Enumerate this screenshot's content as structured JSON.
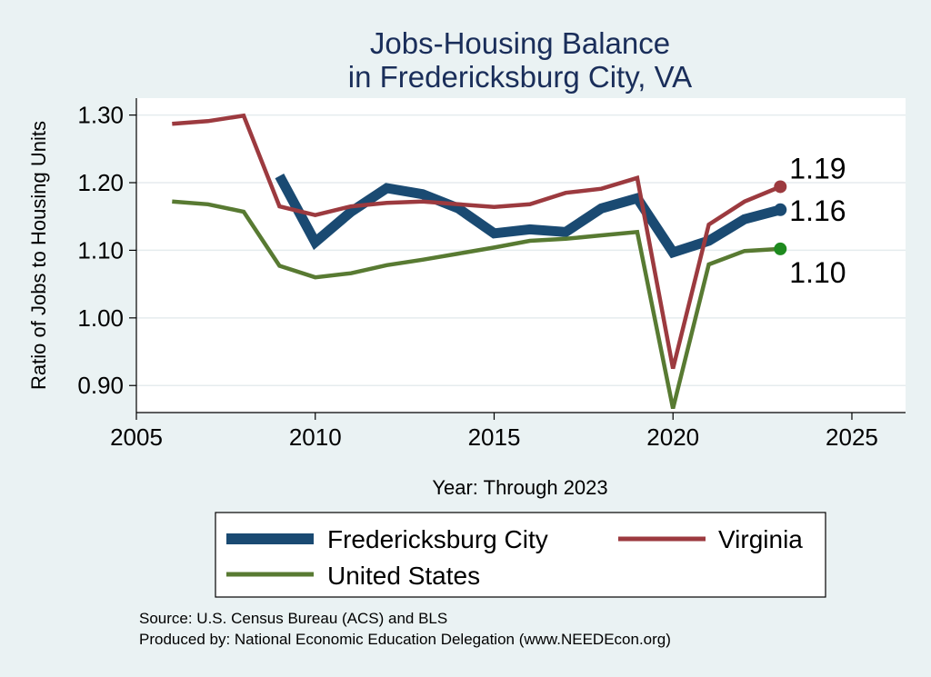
{
  "chart_data": {
    "type": "line",
    "title": [
      "Jobs-Housing Balance",
      "in Fredericksburg City, VA"
    ],
    "xlabel": "Year: Through 2023",
    "ylabel": "Ratio of Jobs to Housing Units",
    "xlim": [
      2005,
      2026.5
    ],
    "ylim": [
      0.86,
      1.325
    ],
    "xticks": [
      2005,
      2010,
      2015,
      2020,
      2025
    ],
    "yticks": [
      0.9,
      1.0,
      1.1,
      1.2,
      1.3
    ],
    "ytick_labels": [
      "0.90",
      "1.00",
      "1.10",
      "1.20",
      "1.30"
    ],
    "grid": true,
    "legend_position": "bottom",
    "series": [
      {
        "name": "Fredericksburg City",
        "color": "#1a4a72",
        "x": [
          2009,
          2010,
          2011,
          2012,
          2013,
          2014,
          2015,
          2016,
          2017,
          2018,
          2019,
          2020,
          2021,
          2022,
          2023
        ],
        "values": [
          1.21,
          1.112,
          1.157,
          1.192,
          1.183,
          1.162,
          1.125,
          1.131,
          1.127,
          1.162,
          1.177,
          1.097,
          1.114,
          1.146,
          1.16
        ],
        "end_label": "1.16"
      },
      {
        "name": "Virginia",
        "color": "#9c3a3f",
        "x": [
          2006,
          2007,
          2008,
          2009,
          2010,
          2011,
          2012,
          2013,
          2014,
          2015,
          2016,
          2017,
          2018,
          2019,
          2020,
          2021,
          2022,
          2023
        ],
        "values": [
          1.287,
          1.291,
          1.299,
          1.165,
          1.152,
          1.165,
          1.17,
          1.172,
          1.168,
          1.164,
          1.168,
          1.185,
          1.191,
          1.207,
          0.925,
          1.138,
          1.172,
          1.194
        ],
        "end_label": "1.19"
      },
      {
        "name": "United States",
        "color": "#587a32",
        "marker_color": "#1e8a1e",
        "x": [
          2006,
          2007,
          2008,
          2009,
          2010,
          2011,
          2012,
          2013,
          2014,
          2015,
          2016,
          2017,
          2018,
          2019,
          2020,
          2021,
          2022,
          2023
        ],
        "values": [
          1.172,
          1.168,
          1.157,
          1.077,
          1.06,
          1.066,
          1.078,
          1.086,
          1.095,
          1.104,
          1.114,
          1.117,
          1.122,
          1.127,
          0.866,
          1.079,
          1.099,
          1.102
        ],
        "end_label": "1.10"
      }
    ],
    "legend": [
      {
        "name": "Fredericksburg City",
        "color": "#1a4a72"
      },
      {
        "name": "Virginia",
        "color": "#9c3a3f"
      },
      {
        "name": "United States",
        "color": "#587a32"
      }
    ]
  },
  "source_line": "Source: U.S. Census Bureau (ACS) and BLS",
  "produced_line": "Produced by: National Economic Education Delegation (www.NEEDEcon.org)"
}
